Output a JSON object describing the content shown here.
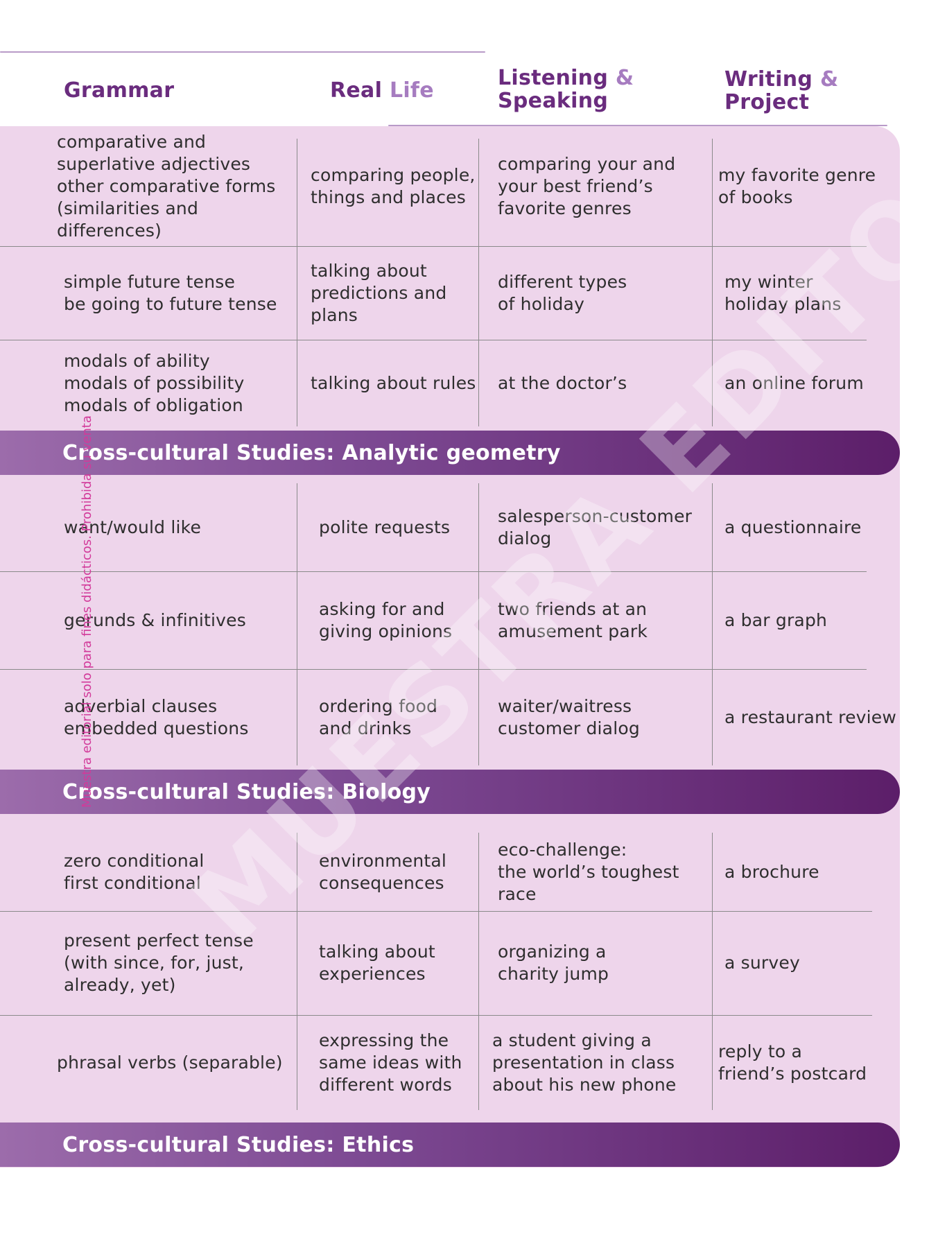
{
  "header": {
    "grammar": "Grammar",
    "real": "Real",
    "life": "Life",
    "listening": "Listening",
    "speaking": "Speaking",
    "writing": "Writing",
    "project": "Project",
    "amp": "&"
  },
  "sections": [
    {
      "rows": [
        {
          "grammar": "comparative and\nsuperlative adjectives\nother comparative forms\n(similarities and differences)",
          "real_life": "comparing people,\nthings and places",
          "listening": "comparing your and\nyour best friend’s\nfavorite genres",
          "writing": "my favorite genre\nof books"
        },
        {
          "grammar": "simple future tense\nbe going to future tense",
          "real_life": "talking about\npredictions and\nplans",
          "listening": "different types\nof holiday",
          "writing": "my winter\nholiday plans"
        },
        {
          "grammar": "modals of ability\nmodals of possibility\nmodals of obligation",
          "real_life": "talking about rules",
          "listening": "at the doctor’s",
          "writing": "an online forum"
        }
      ],
      "band": "Cross-cultural Studies: Analytic geometry"
    },
    {
      "rows": [
        {
          "grammar": "want/would like",
          "real_life": "polite requests",
          "listening": "salesperson-customer\ndialog",
          "writing": "a questionnaire"
        },
        {
          "grammar": "gerunds & infinitives",
          "real_life": "asking for and\ngiving opinions",
          "listening": "two friends at an\namusement park",
          "writing": "a bar graph"
        },
        {
          "grammar": "adverbial clauses\nembedded questions",
          "real_life": "ordering food\nand drinks",
          "listening": "waiter/waitress\ncustomer dialog",
          "writing": "a restaurant review"
        }
      ],
      "band": "Cross-cultural Studies: Biology"
    },
    {
      "rows": [
        {
          "grammar": "zero conditional\nfirst conditional",
          "real_life": "environmental\nconsequences",
          "listening": "eco-challenge:\nthe world’s toughest\nrace",
          "writing": "a brochure"
        },
        {
          "grammar": "present perfect tense\n(with since, for, just,\nalready, yet)",
          "real_life": "talking about\nexperiences",
          "listening": "organizing a\ncharity jump",
          "writing": "a survey"
        },
        {
          "grammar": "phrasal verbs (separable)",
          "real_life": "expressing the\nsame ideas with\ndifferent words",
          "listening": "a student giving a\npresentation in class\nabout his new phone",
          "writing": "reply to a\nfriend’s postcard"
        }
      ],
      "band": "Cross-cultural Studies: Ethics"
    }
  ],
  "watermark": "MUESTRA EDITORIAL",
  "sidenote": "Muestra editorial solo para fines didácticos. Prohibida su venta"
}
